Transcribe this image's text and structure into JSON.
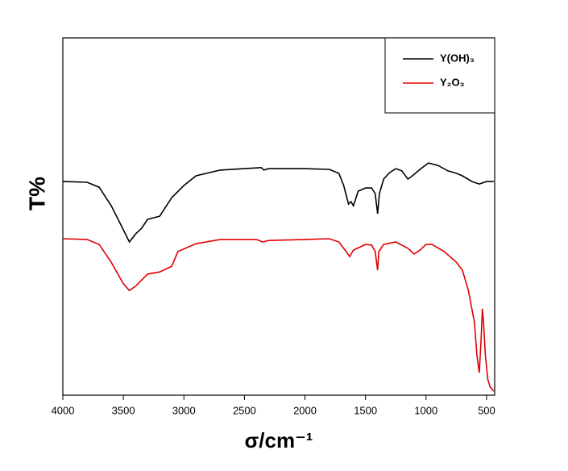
{
  "chart_data": {
    "type": "line",
    "xlabel": "σ/cm⁻¹",
    "ylabel": "T%",
    "xlim": [
      4000,
      433
    ],
    "ylim": [
      0,
      100
    ],
    "xticks": [
      4000,
      3500,
      3000,
      2500,
      2000,
      1500,
      1000,
      500
    ],
    "legend": "upper right",
    "series": [
      {
        "name": "Y(OH)₃",
        "color": "#000000",
        "x": [
          4000,
          3800,
          3700,
          3600,
          3500,
          3450,
          3400,
          3350,
          3300,
          3200,
          3100,
          3000,
          2900,
          2700,
          2500,
          2360,
          2340,
          2300,
          2000,
          1800,
          1720,
          1680,
          1640,
          1620,
          1600,
          1560,
          1500,
          1450,
          1420,
          1400,
          1385,
          1350,
          1300,
          1250,
          1200,
          1150,
          1120,
          1050,
          980,
          900,
          820,
          750,
          700,
          620,
          560,
          500,
          440
        ],
        "values": [
          59.8,
          59.6,
          58.2,
          53.0,
          46.3,
          42.9,
          45.1,
          46.7,
          49.2,
          50.1,
          55.3,
          58.7,
          61.4,
          63.0,
          63.4,
          63.7,
          63.0,
          63.4,
          63.4,
          63.2,
          62.1,
          58.7,
          53.5,
          54.2,
          53.0,
          57.1,
          58.0,
          58.0,
          56.4,
          50.8,
          56.4,
          60.5,
          62.3,
          63.4,
          62.8,
          60.5,
          61.2,
          63.2,
          65.0,
          64.3,
          62.8,
          62.1,
          61.4,
          59.8,
          59.1,
          59.8,
          59.8
        ]
      },
      {
        "name": "Y₂O₃",
        "color": "#e00000",
        "x": [
          4000,
          3800,
          3700,
          3600,
          3500,
          3450,
          3400,
          3300,
          3200,
          3100,
          3050,
          2900,
          2700,
          2400,
          2350,
          2300,
          2000,
          1800,
          1720,
          1660,
          1630,
          1600,
          1500,
          1450,
          1420,
          1400,
          1390,
          1350,
          1250,
          1150,
          1100,
          1050,
          1000,
          950,
          850,
          750,
          700,
          650,
          600,
          580,
          560,
          545,
          535,
          525,
          510,
          490,
          470,
          440
        ],
        "values": [
          43.8,
          43.6,
          42.2,
          37.2,
          31.2,
          29.3,
          30.5,
          33.9,
          34.5,
          36.1,
          40.2,
          42.4,
          43.6,
          43.6,
          42.9,
          43.3,
          43.6,
          43.8,
          42.9,
          40.2,
          38.8,
          40.6,
          42.2,
          42.0,
          40.2,
          35.0,
          40.2,
          42.2,
          42.9,
          41.1,
          39.5,
          40.6,
          42.2,
          42.2,
          40.2,
          37.2,
          35.0,
          29.3,
          20.3,
          11.3,
          6.3,
          15.8,
          24.2,
          20.3,
          11.3,
          4.5,
          2.3,
          1.1
        ]
      }
    ]
  }
}
